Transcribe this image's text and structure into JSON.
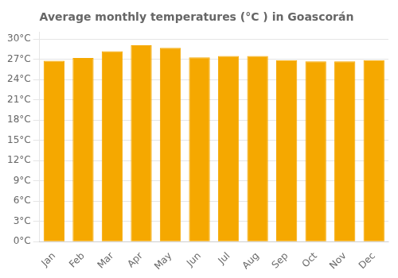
{
  "chart_data": {
    "type": "bar",
    "title": "Average monthly temperatures (°C ) in Goascorán",
    "categories": [
      "Jan",
      "Feb",
      "Mar",
      "Apr",
      "May",
      "Jun",
      "Jul",
      "Aug",
      "Sep",
      "Oct",
      "Nov",
      "Dec"
    ],
    "values": [
      26.8,
      27.2,
      28.2,
      29.1,
      28.7,
      27.3,
      27.5,
      27.5,
      26.9,
      26.7,
      26.7,
      26.9
    ],
    "color": "#F5A800",
    "ylim": [
      0,
      31
    ],
    "yticks": [
      {
        "value": 0,
        "label": "0°C"
      },
      {
        "value": 3,
        "label": "3°C"
      },
      {
        "value": 6,
        "label": "6°C"
      },
      {
        "value": 9,
        "label": "9°C"
      },
      {
        "value": 12,
        "label": "12°C"
      },
      {
        "value": 15,
        "label": "15°C"
      },
      {
        "value": 18,
        "label": "18°C"
      },
      {
        "value": 21,
        "label": "21°C"
      },
      {
        "value": 24,
        "label": "24°C"
      },
      {
        "value": 27,
        "label": "27°C"
      },
      {
        "value": 30,
        "label": "30°C"
      }
    ],
    "grid": true
  }
}
